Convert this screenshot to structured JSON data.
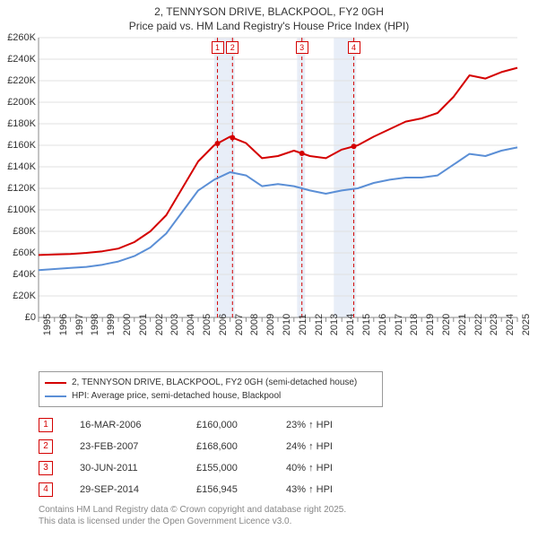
{
  "title": {
    "line1": "2, TENNYSON DRIVE, BLACKPOOL, FY2 0GH",
    "line2": "Price paid vs. HM Land Registry's House Price Index (HPI)"
  },
  "chart": {
    "type": "line",
    "background_color": "#ffffff",
    "ylim": [
      0,
      260000
    ],
    "ytick_step": 20000,
    "ytick_labels": [
      "£0",
      "£20K",
      "£40K",
      "£60K",
      "£80K",
      "£100K",
      "£120K",
      "£140K",
      "£160K",
      "£180K",
      "£200K",
      "£220K",
      "£240K",
      "£260K"
    ],
    "x_years": [
      1995,
      1996,
      1997,
      1998,
      1999,
      2000,
      2001,
      2002,
      2003,
      2004,
      2005,
      2006,
      2007,
      2008,
      2009,
      2010,
      2011,
      2012,
      2013,
      2014,
      2015,
      2016,
      2017,
      2018,
      2019,
      2020,
      2021,
      2022,
      2023,
      2024,
      2025
    ],
    "axis_color": "#888888",
    "grid_color": "#e0e0e0",
    "highlight_band_color": "#e8eef8",
    "marker_line_color": "#d40000",
    "series": [
      {
        "name": "property",
        "label": "2, TENNYSON DRIVE, BLACKPOOL, FY2 0GH (semi-detached house)",
        "color": "#d40000",
        "line_width": 2,
        "values": [
          58000,
          58500,
          59000,
          60000,
          61500,
          64000,
          70000,
          80000,
          95000,
          120000,
          145000,
          160000,
          168000,
          162000,
          148000,
          150000,
          155000,
          150000,
          148000,
          156000,
          160000,
          168000,
          175000,
          182000,
          185000,
          190000,
          205000,
          225000,
          222000,
          228000,
          232000
        ]
      },
      {
        "name": "hpi",
        "label": "HPI: Average price, semi-detached house, Blackpool",
        "color": "#5b8fd6",
        "line_width": 2,
        "values": [
          44000,
          45000,
          46000,
          47000,
          49000,
          52000,
          57000,
          65000,
          78000,
          98000,
          118000,
          128000,
          135000,
          132000,
          122000,
          124000,
          122000,
          118000,
          115000,
          118000,
          120000,
          125000,
          128000,
          130000,
          130000,
          132000,
          142000,
          152000,
          150000,
          155000,
          158000
        ]
      }
    ],
    "sale_markers": [
      {
        "n": "1",
        "year": 2006.21
      },
      {
        "n": "2",
        "year": 2007.15
      },
      {
        "n": "3",
        "year": 2011.5
      },
      {
        "n": "4",
        "year": 2014.75
      }
    ],
    "highlight_bands": [
      {
        "from_year": 2006.0,
        "to_year": 2007.3
      },
      {
        "from_year": 2011.2,
        "to_year": 2011.7
      },
      {
        "from_year": 2013.5,
        "to_year": 2014.9
      }
    ]
  },
  "legend": {
    "rows": [
      {
        "color": "#d40000",
        "text": "2, TENNYSON DRIVE, BLACKPOOL, FY2 0GH (semi-detached house)"
      },
      {
        "color": "#5b8fd6",
        "text": "HPI: Average price, semi-detached house, Blackpool"
      }
    ]
  },
  "sales": [
    {
      "n": "1",
      "date": "16-MAR-2006",
      "price": "£160,000",
      "diff": "23% ↑ HPI"
    },
    {
      "n": "2",
      "date": "23-FEB-2007",
      "price": "£168,600",
      "diff": "24% ↑ HPI"
    },
    {
      "n": "3",
      "date": "30-JUN-2011",
      "price": "£155,000",
      "diff": "40% ↑ HPI"
    },
    {
      "n": "4",
      "date": "29-SEP-2014",
      "price": "£156,945",
      "diff": "43% ↑ HPI"
    }
  ],
  "footer": {
    "line1": "Contains HM Land Registry data © Crown copyright and database right 2025.",
    "line2": "This data is licensed under the Open Government Licence v3.0."
  }
}
